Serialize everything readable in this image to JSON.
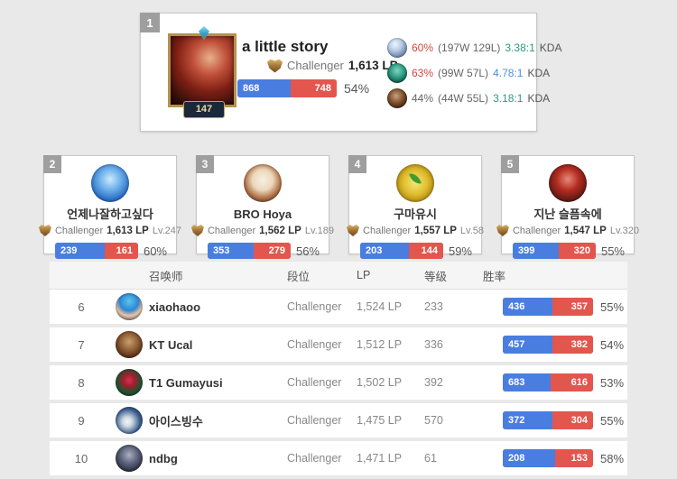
{
  "colors": {
    "page_bg": "#e9e9e9",
    "win_blue": "#4a7de0",
    "loss_red": "#e2564e",
    "badge_gray": "#9e9e9e",
    "hot_winrate_red": "#d0483f",
    "kda_green": "#2b9c7e",
    "kda_blue": "#4a90e2"
  },
  "top_player": {
    "rank": 1,
    "summoner_level": 147,
    "name": "a little story",
    "tier": "Challenger",
    "lp": "1,613 LP",
    "wins": 868,
    "losses": 748,
    "winrate": "54%",
    "champions": [
      {
        "icon": "champion-frost-portrait",
        "winrate": "60%",
        "winrate_color": "#d0483f",
        "record": "(197W 129L)",
        "kda": "3.38:1",
        "kda_color": "#2b9c7e",
        "kda_label": "KDA"
      },
      {
        "icon": "champion-teal-portrait",
        "winrate": "63%",
        "winrate_color": "#d0483f",
        "record": "(99W 57L)",
        "kda": "4.78:1",
        "kda_color": "#4a90e2",
        "kda_label": "KDA"
      },
      {
        "icon": "champion-dark-portrait",
        "winrate": "44%",
        "winrate_color": "#666666",
        "record": "(44W 55L)",
        "kda": "3.18:1",
        "kda_color": "#2b9c7e",
        "kda_label": "KDA"
      }
    ]
  },
  "cards": [
    {
      "rank": 2,
      "name": "언제나잘하고싶다",
      "tier": "Challenger",
      "lp": "1,613 LP",
      "level": "Lv.247",
      "wins": 239,
      "losses": 161,
      "winrate": "60%"
    },
    {
      "rank": 3,
      "name": "BRO Hoya",
      "tier": "Challenger",
      "lp": "1,562 LP",
      "level": "Lv.189",
      "wins": 353,
      "losses": 279,
      "winrate": "56%"
    },
    {
      "rank": 4,
      "name": "구마유시",
      "tier": "Challenger",
      "lp": "1,557 LP",
      "level": "Lv.58",
      "wins": 203,
      "losses": 144,
      "winrate": "59%"
    },
    {
      "rank": 5,
      "name": "지난 슬픔속에",
      "tier": "Challenger",
      "lp": "1,547 LP",
      "level": "Lv.320",
      "wins": 399,
      "losses": 320,
      "winrate": "55%"
    }
  ],
  "table": {
    "headers": {
      "summoner": "召唤师",
      "tier": "段位",
      "lp": "LP",
      "level": "等级",
      "winrate": "胜率"
    },
    "rows": [
      {
        "rank": 6,
        "name": "xiaohaoo",
        "tier": "Challenger",
        "lp": "1,524 LP",
        "level": 233,
        "wins": 436,
        "losses": 357,
        "winrate": "55%"
      },
      {
        "rank": 7,
        "name": "KT Ucal",
        "tier": "Challenger",
        "lp": "1,512 LP",
        "level": 336,
        "wins": 457,
        "losses": 382,
        "winrate": "54%"
      },
      {
        "rank": 8,
        "name": "T1 Gumayusi",
        "tier": "Challenger",
        "lp": "1,502 LP",
        "level": 392,
        "wins": 683,
        "losses": 616,
        "winrate": "53%"
      },
      {
        "rank": 9,
        "name": "아이스빙수",
        "tier": "Challenger",
        "lp": "1,475 LP",
        "level": 570,
        "wins": 372,
        "losses": 304,
        "winrate": "55%"
      },
      {
        "rank": 10,
        "name": "ndbg",
        "tier": "Challenger",
        "lp": "1,471 LP",
        "level": 61,
        "wins": 208,
        "losses": 153,
        "winrate": "58%"
      }
    ]
  }
}
